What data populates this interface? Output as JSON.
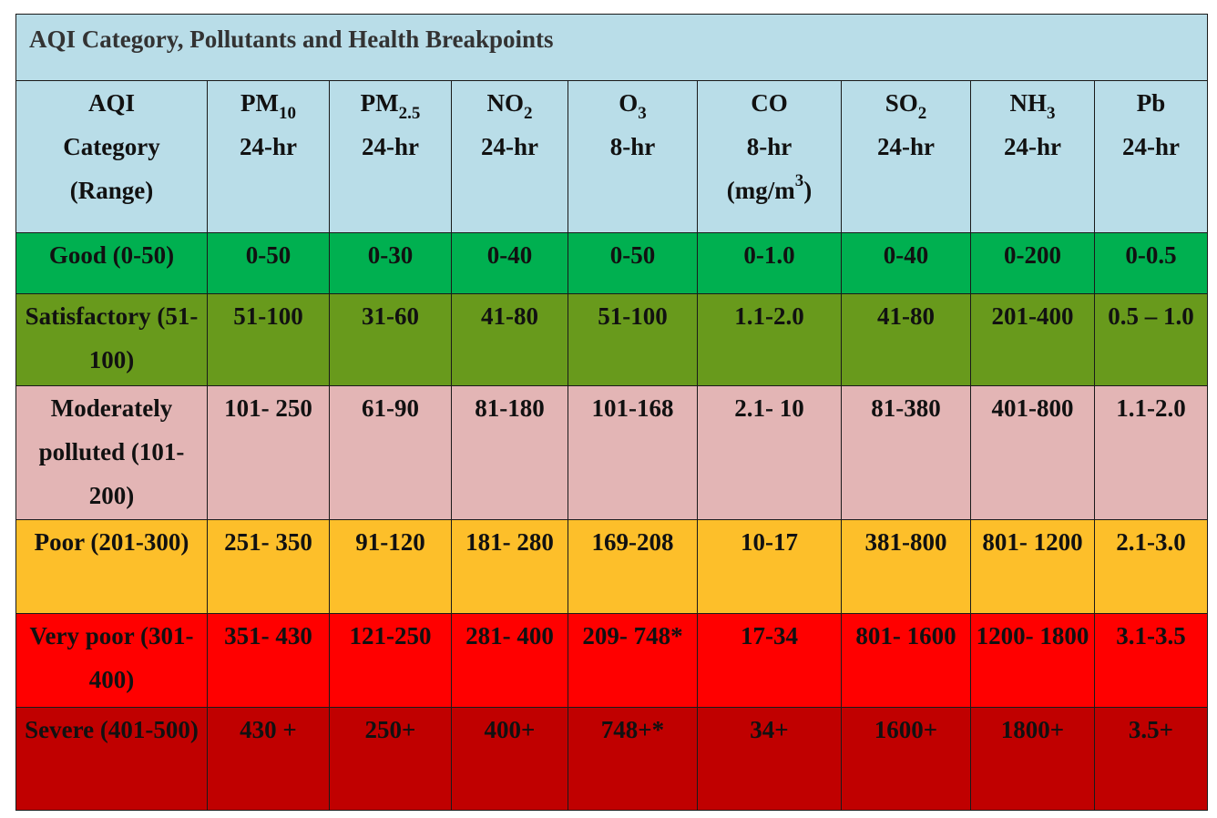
{
  "title": "AQI Category, Pollutants and Health Breakpoints",
  "header": {
    "category": [
      "AQI",
      "Category",
      "(Range)"
    ],
    "pollutants": [
      {
        "symbol": "PM",
        "sub": "10",
        "avg": "24-hr"
      },
      {
        "symbol": "PM",
        "sub": "2.5",
        "avg": "24-hr"
      },
      {
        "symbol": "NO",
        "sub": "2",
        "avg": "24-hr"
      },
      {
        "symbol": "O",
        "sub": "3",
        "avg": "8-hr"
      },
      {
        "symbol": "CO",
        "sub": "",
        "avg": "8-hr",
        "unit_prefix": "(mg/m",
        "unit_sup": "3",
        "unit_suffix": ")"
      },
      {
        "symbol": "SO",
        "sub": "2",
        "avg": "24-hr"
      },
      {
        "symbol": "NH",
        "sub": "3",
        "avg": "24-hr"
      },
      {
        "symbol": "Pb",
        "sub": "",
        "avg": "24-hr"
      }
    ]
  },
  "rows": [
    {
      "category": "Good (0-50)",
      "color": "#00b050",
      "values": [
        "0-50",
        "0-30",
        "0-40",
        "0-50",
        "0-1.0",
        "0-40",
        "0-200",
        "0-0.5"
      ]
    },
    {
      "category": "Satisfactory (51-100)",
      "color": "#689a1c",
      "values": [
        "51-100",
        "31-60",
        "41-80",
        "51-100",
        "1.1-2.0",
        "41-80",
        "201-400",
        "0.5 – 1.0"
      ]
    },
    {
      "category": "Moderately polluted (101-200)",
      "color": "#e3b5b5",
      "values": [
        "101- 250",
        "61-90",
        "81-180",
        "101-168",
        "2.1- 10",
        "81-380",
        "401-800",
        "1.1-2.0"
      ]
    },
    {
      "category": "Poor (201-300)",
      "color": "#fdbf2a",
      "values": [
        "251- 350",
        "91-120",
        "181- 280",
        "169-208",
        "10-17",
        "381-800",
        "801- 1200",
        "2.1-3.0"
      ]
    },
    {
      "category": "Very poor (301-400)",
      "color": "#ff0000",
      "values": [
        "351- 430",
        "121-250",
        "281- 400",
        "209- 748*",
        "17-34",
        "801- 1600",
        "1200- 1800",
        "3.1-3.5"
      ]
    },
    {
      "category": "Severe (401-500)",
      "color": "#c00000",
      "values": [
        "430 +",
        "250+",
        "400+",
        "748+*",
        "34+",
        "1600+",
        "1800+",
        "3.5+"
      ]
    }
  ]
}
